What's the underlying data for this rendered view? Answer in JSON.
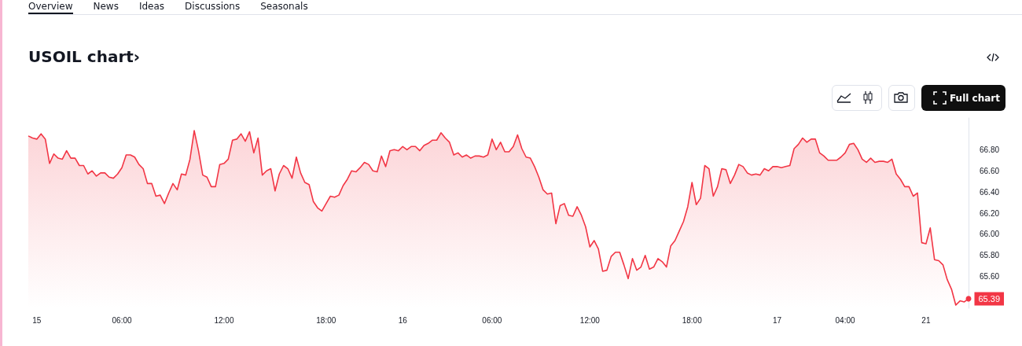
{
  "chart_data": {
    "type": "area",
    "title": "USOIL chart›",
    "annotations": [
      "Overview",
      "News",
      "Ideas",
      "Discussions",
      "Seasonals",
      "Full chart"
    ],
    "categories": [
      null,
      null,
      "15",
      null,
      null,
      null,
      null,
      null,
      null,
      null,
      null,
      null,
      null,
      null,
      null,
      null,
      null,
      null,
      null,
      null,
      null,
      null,
      "06:00",
      null,
      null,
      null,
      null,
      null,
      null,
      null,
      null,
      null,
      null,
      null,
      null,
      null,
      null,
      null,
      null,
      null,
      null,
      null,
      null,
      null,
      null,
      null,
      "12:00",
      null,
      null,
      null,
      null,
      null,
      null,
      null,
      null,
      null,
      null,
      null,
      null,
      null,
      null,
      null,
      null,
      null,
      null,
      null,
      null,
      null,
      null,
      null,
      "18:00",
      null,
      null,
      null,
      null,
      null,
      null,
      null,
      null,
      null,
      null,
      null,
      null,
      null,
      null,
      null,
      null,
      null,
      "16",
      null,
      null,
      null,
      null,
      null,
      null,
      null,
      null,
      null,
      null,
      null,
      null,
      null,
      null,
      null,
      null,
      null,
      null,
      null,
      null,
      "06:00",
      null,
      null,
      null,
      null,
      null,
      null,
      null,
      null,
      null,
      null,
      null,
      null,
      null,
      null,
      null,
      null,
      null,
      null,
      null,
      null,
      null,
      null,
      "12:00",
      null,
      null,
      null,
      null,
      null,
      null,
      null,
      null,
      null,
      null,
      null,
      null,
      null,
      null,
      null,
      null,
      null,
      null,
      null,
      null,
      null,
      null,
      null,
      "18:00",
      null,
      null,
      null,
      null,
      null,
      null,
      null,
      null,
      null,
      null,
      null,
      null,
      null,
      null,
      null,
      null,
      null,
      null,
      null,
      "17",
      null,
      null,
      null,
      null,
      null,
      null,
      null,
      null,
      null,
      null,
      null,
      null,
      null,
      null,
      null,
      "04:00",
      null,
      null,
      null,
      null,
      null,
      null,
      null,
      null,
      null,
      null,
      null,
      null,
      null,
      null,
      null,
      null,
      null,
      null,
      "21",
      null,
      null,
      null,
      null,
      null,
      null,
      null,
      null,
      null,
      null
    ],
    "yticks": [
      {
        "value": 65.6,
        "label": "65.60"
      },
      {
        "value": 65.8,
        "label": "65.80"
      },
      {
        "value": 66,
        "label": "66.00"
      },
      {
        "value": 66.2,
        "label": "66.20"
      },
      {
        "value": 66.4,
        "label": "66.40"
      },
      {
        "value": 66.6,
        "label": "66.60"
      },
      {
        "value": 66.8,
        "label": "66.80"
      }
    ],
    "ylim": [
      65.3,
      67.1
    ],
    "grid": false,
    "marker": "none",
    "series": [
      {
        "color": "#f23645",
        "values": [
          66.93,
          66.91,
          66.9,
          66.95,
          66.9,
          66.67,
          66.76,
          66.72,
          66.71,
          66.79,
          66.72,
          66.72,
          66.65,
          66.65,
          66.57,
          66.6,
          66.55,
          66.58,
          66.58,
          66.54,
          66.53,
          66.57,
          66.63,
          66.75,
          66.75,
          66.73,
          66.66,
          66.62,
          66.48,
          66.48,
          66.36,
          66.37,
          66.29,
          66.39,
          66.48,
          66.42,
          66.57,
          66.56,
          66.71,
          66.98,
          66.79,
          66.56,
          66.54,
          66.45,
          66.45,
          66.66,
          66.67,
          66.71,
          66.89,
          66.9,
          66.95,
          66.88,
          66.97,
          66.77,
          66.91,
          66.56,
          66.6,
          66.62,
          66.41,
          66.57,
          66.65,
          66.62,
          66.53,
          66.73,
          66.58,
          66.49,
          66.47,
          66.31,
          66.25,
          66.22,
          66.29,
          66.36,
          66.35,
          66.37,
          66.46,
          66.52,
          66.6,
          66.59,
          66.63,
          66.68,
          66.66,
          66.6,
          66.59,
          66.74,
          66.64,
          66.79,
          66.8,
          66.79,
          66.83,
          66.8,
          66.83,
          66.83,
          66.79,
          66.84,
          66.86,
          66.89,
          66.89,
          66.96,
          66.91,
          66.87,
          66.75,
          66.77,
          66.73,
          66.75,
          66.72,
          66.74,
          66.74,
          66.73,
          66.75,
          66.9,
          66.8,
          66.87,
          66.78,
          66.78,
          66.83,
          66.94,
          66.81,
          66.73,
          66.72,
          66.64,
          66.54,
          66.42,
          66.38,
          66.39,
          66.1,
          66.27,
          66.29,
          66.18,
          66.17,
          66.26,
          66.18,
          66.07,
          65.88,
          65.94,
          65.86,
          65.65,
          65.66,
          65.79,
          65.83,
          65.83,
          65.71,
          65.58,
          65.77,
          65.66,
          65.69,
          65.8,
          65.67,
          65.69,
          65.77,
          65.74,
          65.69,
          65.89,
          65.94,
          66.03,
          66.12,
          66.26,
          66.49,
          66.28,
          66.34,
          66.65,
          66.62,
          66.36,
          66.45,
          66.62,
          66.61,
          66.48,
          66.56,
          66.66,
          66.64,
          66.58,
          66.56,
          66.57,
          66.56,
          66.62,
          66.6,
          66.64,
          66.64,
          66.63,
          66.64,
          66.65,
          66.81,
          66.85,
          66.91,
          66.87,
          66.9,
          66.9,
          66.77,
          66.74,
          66.7,
          66.7,
          66.7,
          66.73,
          66.77,
          66.85,
          66.86,
          66.8,
          66.71,
          66.68,
          66.72,
          66.68,
          66.69,
          66.69,
          66.68,
          66.71,
          66.57,
          66.52,
          66.45,
          66.45,
          66.36,
          66.39,
          65.92,
          65.91,
          66.06,
          65.76,
          65.75,
          65.71,
          65.57,
          65.48,
          65.33,
          65.37,
          65.36,
          65.39
        ],
        "value_labels": [
          null,
          null,
          null,
          null,
          null,
          null,
          null,
          null,
          null,
          null,
          null,
          null,
          null,
          null,
          null,
          null,
          null,
          null,
          null,
          null,
          null,
          null,
          null,
          null,
          null,
          null,
          null,
          null,
          null,
          null,
          null,
          null,
          null,
          null,
          null,
          null,
          null,
          null,
          null,
          null,
          null,
          null,
          null,
          null,
          null,
          null,
          null,
          null,
          null,
          null,
          null,
          null,
          null,
          null,
          null,
          null,
          null,
          null,
          null,
          null,
          null,
          null,
          null,
          null,
          null,
          null,
          null,
          null,
          null,
          null,
          null,
          null,
          null,
          null,
          null,
          null,
          null,
          null,
          null,
          null,
          null,
          null,
          null,
          null,
          null,
          null,
          null,
          null,
          null,
          null,
          null,
          null,
          null,
          null,
          null,
          null,
          null,
          null,
          null,
          null,
          null,
          null,
          null,
          null,
          null,
          null,
          null,
          null,
          null,
          null,
          null,
          null,
          null,
          null,
          null,
          null,
          null,
          null,
          null,
          null,
          null,
          null,
          null,
          null,
          null,
          null,
          null,
          null,
          null,
          null,
          null,
          null,
          null,
          null,
          null,
          null,
          null,
          null,
          null,
          null,
          null,
          null,
          null,
          null,
          null,
          null,
          null,
          null,
          null,
          null,
          null,
          null,
          null,
          null,
          null,
          null,
          null,
          null,
          null,
          null,
          null,
          null,
          null,
          null,
          null,
          null,
          null,
          null,
          null,
          null,
          null,
          null,
          null,
          null,
          null,
          null,
          null,
          null,
          null,
          null,
          null,
          null,
          null,
          null,
          null,
          null,
          null,
          null,
          null,
          null,
          null,
          null,
          null,
          null,
          null,
          null,
          null,
          null,
          null,
          null,
          null,
          null,
          null,
          null,
          null,
          null,
          null,
          null,
          null,
          null,
          null,
          null,
          null,
          null,
          null,
          null,
          null,
          null,
          null,
          null,
          null,
          "65.39"
        ]
      }
    ]
  }
}
